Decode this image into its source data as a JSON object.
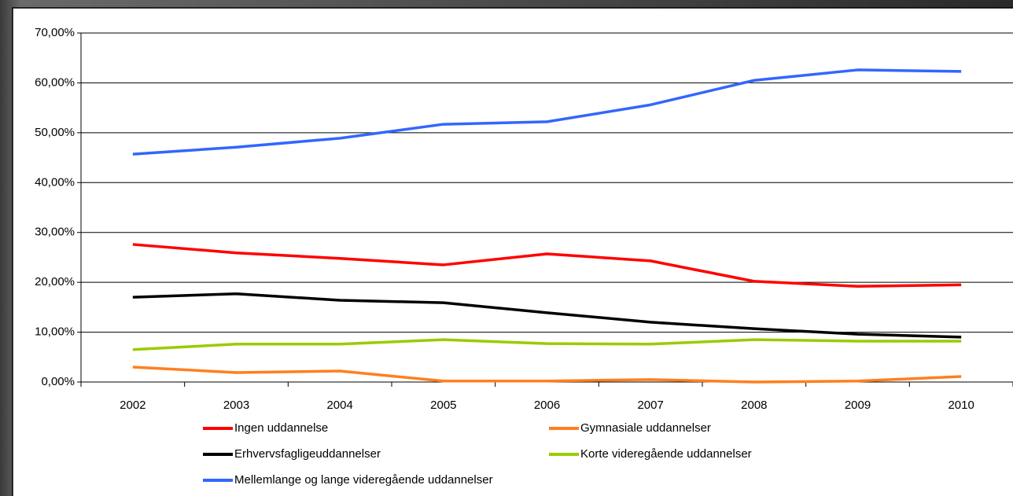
{
  "chart_data": {
    "type": "line",
    "categories": [
      "2002",
      "2003",
      "2004",
      "2005",
      "2006",
      "2007",
      "2008",
      "2009",
      "2010"
    ],
    "series": [
      {
        "name": "Ingen uddannelse",
        "color": "#ff0000",
        "values": [
          27.6,
          25.9,
          24.8,
          23.5,
          25.7,
          24.3,
          20.2,
          19.2,
          19.5
        ]
      },
      {
        "name": "Gymnasiale uddannelser",
        "color": "#ff7f1f",
        "values": [
          3.0,
          1.9,
          2.2,
          0.2,
          0.2,
          0.5,
          0.0,
          0.2,
          1.1
        ]
      },
      {
        "name": "Erhvervsfagligeuddannelser",
        "color": "#000000",
        "values": [
          17.0,
          17.7,
          16.4,
          15.9,
          13.9,
          12.0,
          10.7,
          9.6,
          9.0
        ]
      },
      {
        "name": "Korte videregående uddannelser",
        "color": "#99cc00",
        "values": [
          6.5,
          7.6,
          7.6,
          8.5,
          7.7,
          7.6,
          8.5,
          8.2,
          8.2
        ]
      },
      {
        "name": "Mellemlange og lange videregående uddannelser",
        "color": "#3366ff",
        "values": [
          45.7,
          47.1,
          48.9,
          51.7,
          52.2,
          55.6,
          60.5,
          62.6,
          62.3
        ]
      }
    ],
    "ylim": [
      0,
      70
    ],
    "yticks": [
      {
        "value": 0,
        "label": "0,00%"
      },
      {
        "value": 10,
        "label": "10,00%"
      },
      {
        "value": 20,
        "label": "20,00%"
      },
      {
        "value": 30,
        "label": "30,00%"
      },
      {
        "value": 40,
        "label": "40,00%"
      },
      {
        "value": 50,
        "label": "50,00%"
      },
      {
        "value": 60,
        "label": "60,00%"
      },
      {
        "value": 70,
        "label": "70,00%"
      }
    ],
    "grid": true
  }
}
